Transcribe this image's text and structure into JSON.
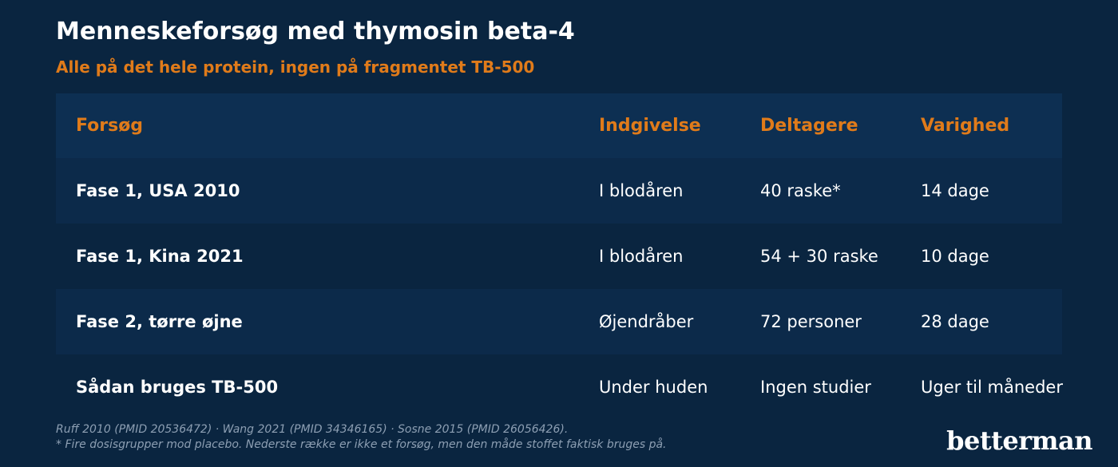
{
  "title": "Menneskeforsøg med thymosin beta-4",
  "subtitle": "Alle på det hele protein, ingen på fragmentet TB-500",
  "table": {
    "headers": [
      "Forsøg",
      "Indgivelse",
      "Deltagere",
      "Varighed"
    ],
    "rows": [
      [
        "Fase 1, USA 2010",
        "I blodåren",
        "40 raske*",
        "14 dage"
      ],
      [
        "Fase 1, Kina 2021",
        "I blodåren",
        "54 + 30 raske",
        "10 dage"
      ],
      [
        "Fase 2, tørre øjne",
        "Øjendråber",
        "72 personer",
        "28 dage"
      ],
      [
        "Sådan bruges TB-500",
        "Under huden",
        "Ingen studier",
        "Uger til måneder"
      ]
    ]
  },
  "footnotes": [
    "Ruff 2010 (PMID 20536472) · Wang 2021 (PMID 34346165) · Sosne 2015 (PMID 26056426).",
    "* Fire dosisgrupper mod placebo. Nederste række er ikke et forsøg, men den måde stoffet faktisk bruges på."
  ],
  "brand": "betterman",
  "colors": {
    "background": "#0a2540",
    "accent": "#e07b1a",
    "header_row": "#0d2f52",
    "alt_row": "#0c2a4a",
    "footnote": "#8d9fb3"
  }
}
